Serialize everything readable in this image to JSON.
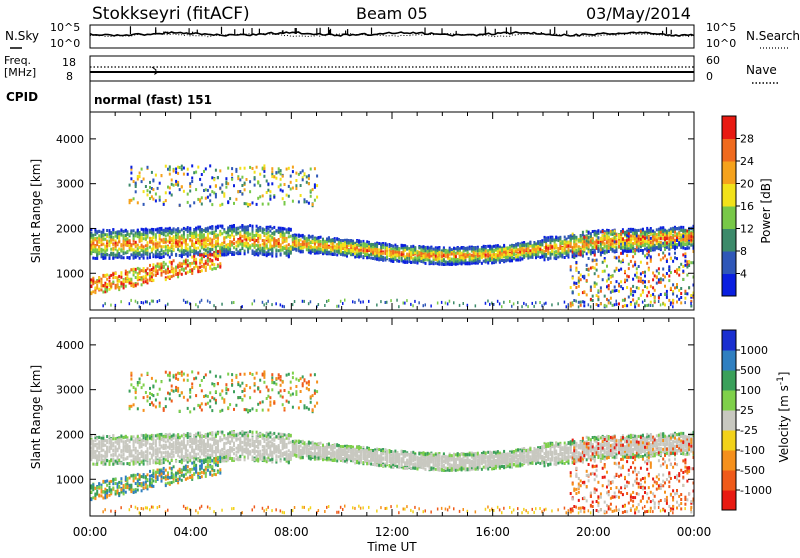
{
  "header": {
    "station": "Stokkseyri (fitACF)",
    "beam": "Beam 05",
    "date": "03/May/2014"
  },
  "left_labels": {
    "nsky": "N.Sky",
    "freq": "Freq.",
    "freq_unit": "[MHz]",
    "cpid": "CPID"
  },
  "right_labels": {
    "nsearch": "N.Search",
    "nave": "Nave"
  },
  "cpid_text": "normal (fast) 151",
  "noise_panel": {
    "left_ticks": [
      "10^5",
      "10^0"
    ],
    "right_ticks": [
      "10^5",
      "10^0"
    ]
  },
  "freq_panel": {
    "left_ticks": [
      "18",
      "8"
    ],
    "right_ticks": [
      "60",
      "0"
    ]
  },
  "power_colorbar": {
    "label": "Power [dB]",
    "ticks": [
      "4",
      "8",
      "12",
      "16",
      "20",
      "24",
      "28"
    ],
    "colors": [
      "#0a1fe0",
      "#2f57b8",
      "#3c8a6a",
      "#78c848",
      "#f2e21a",
      "#f5a21c",
      "#ef6a1e",
      "#e81a12"
    ]
  },
  "velocity_colorbar": {
    "label": "Velocity [m s^-1]",
    "ticks": [
      "1000",
      "500",
      "100",
      "25",
      "-25",
      "-100",
      "-500",
      "-1000"
    ],
    "colors": [
      "#1a2fd0",
      "#2f7fc0",
      "#3aa05a",
      "#7fd04a",
      "#c8c8c0",
      "#f2d21a",
      "#f5901c",
      "#ef5a1a",
      "#e81a12"
    ]
  },
  "chart_data": [
    {
      "type": "heatmap",
      "title": "",
      "xlabel": "",
      "ylabel": "Slant Range [km]",
      "yticks": [
        1000,
        2000,
        3000,
        4000
      ],
      "ylim": [
        180,
        4600
      ],
      "xlim": [
        "00:00",
        "24:00"
      ],
      "xticks": [
        "00:00",
        "04:00",
        "08:00",
        "12:00",
        "16:00",
        "20:00",
        "00:00"
      ],
      "colorbar": "Power [dB]",
      "band_core_range_km": [
        [
          0,
          1650
        ],
        [
          2,
          1660
        ],
        [
          4,
          1700
        ],
        [
          6,
          1750
        ],
        [
          8,
          1680
        ],
        [
          10,
          1580
        ],
        [
          12,
          1450
        ],
        [
          14,
          1380
        ],
        [
          16,
          1420
        ],
        [
          18,
          1550
        ],
        [
          19,
          1600
        ],
        [
          20,
          1700
        ],
        [
          22,
          1750
        ],
        [
          24,
          1800
        ]
      ]
    },
    {
      "type": "heatmap",
      "title": "",
      "xlabel": "Time UT",
      "ylabel": "Slant Range [km]",
      "yticks": [
        1000,
        2000,
        3000,
        4000
      ],
      "ylim": [
        180,
        4600
      ],
      "xlim": [
        "00:00",
        "24:00"
      ],
      "xticks": [
        "00:00",
        "04:00",
        "08:00",
        "12:00",
        "16:00",
        "20:00",
        "00:00"
      ],
      "colorbar": "Velocity [m s^-1]"
    }
  ]
}
